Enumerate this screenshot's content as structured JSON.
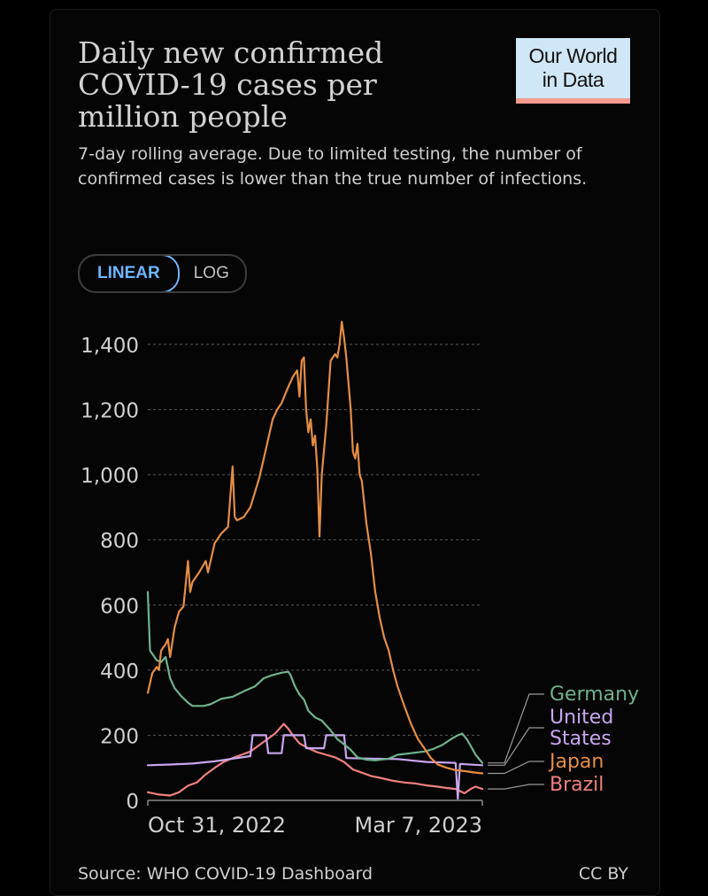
{
  "logo": {
    "line1": "Our World",
    "line2": "in Data"
  },
  "title": "Daily new confirmed COVID-19 cases per million people",
  "subtitle": "7-day rolling average. Due to limited testing, the number of confirmed cases is lower than the true number of infections.",
  "scale_toggle": {
    "linear_label": "LINEAR",
    "log_label": "LOG",
    "selected": "LINEAR"
  },
  "footer": {
    "source": "Source: WHO COVID-19 Dashboard",
    "license": "CC BY"
  },
  "chart_data": {
    "type": "line",
    "title": "Daily new confirmed COVID-19 cases per million people",
    "xlabel": "",
    "ylabel": "",
    "ylim": [
      0,
      1400
    ],
    "yticks": [
      0,
      200,
      400,
      600,
      800,
      1000,
      1200,
      1400
    ],
    "ytick_labels": [
      "0",
      "200",
      "400",
      "600",
      "800",
      "1,000",
      "1,200",
      "1,400"
    ],
    "x_range_days": [
      0,
      150
    ],
    "xtick_labels": [
      {
        "day": 10,
        "label": "Oct 31, 2022"
      },
      {
        "day": 137,
        "label": "Mar 7, 2023"
      }
    ],
    "grid": "horizontal dashed",
    "legend_placement": "right, end of lines",
    "series": [
      {
        "name": "Germany",
        "label_lines": [
          "Germany"
        ],
        "color": "#6fb28d",
        "points": [
          [
            0,
            640
          ],
          [
            1,
            460
          ],
          [
            4,
            430
          ],
          [
            6,
            425
          ],
          [
            8,
            440
          ],
          [
            10,
            375
          ],
          [
            12,
            345
          ],
          [
            15,
            320
          ],
          [
            18,
            300
          ],
          [
            20,
            290
          ],
          [
            25,
            290
          ],
          [
            28,
            295
          ],
          [
            33,
            312
          ],
          [
            38,
            318
          ],
          [
            43,
            335
          ],
          [
            48,
            350
          ],
          [
            52,
            375
          ],
          [
            56,
            385
          ],
          [
            60,
            392
          ],
          [
            63,
            395
          ],
          [
            64,
            385
          ],
          [
            66,
            350
          ],
          [
            68,
            325
          ],
          [
            70,
            310
          ],
          [
            72,
            275
          ],
          [
            75,
            255
          ],
          [
            78,
            245
          ],
          [
            82,
            215
          ],
          [
            85,
            188
          ],
          [
            88,
            172
          ],
          [
            91,
            155
          ],
          [
            94,
            132
          ],
          [
            98,
            125
          ],
          [
            102,
            123
          ],
          [
            108,
            128
          ],
          [
            112,
            140
          ],
          [
            118,
            145
          ],
          [
            124,
            150
          ],
          [
            128,
            158
          ],
          [
            132,
            170
          ],
          [
            136,
            188
          ],
          [
            139,
            200
          ],
          [
            141,
            205
          ],
          [
            143,
            188
          ],
          [
            145,
            165
          ],
          [
            147,
            140
          ],
          [
            150,
            115
          ]
        ]
      },
      {
        "name": "United States",
        "label_lines": [
          "United",
          "States"
        ],
        "color": "#c8a6ee",
        "points": [
          [
            0,
            108
          ],
          [
            10,
            110
          ],
          [
            20,
            113
          ],
          [
            30,
            120
          ],
          [
            38,
            128
          ],
          [
            46,
            136
          ],
          [
            47,
            200
          ],
          [
            53,
            200
          ],
          [
            54,
            145
          ],
          [
            60,
            145
          ],
          [
            61,
            200
          ],
          [
            70,
            200
          ],
          [
            71,
            160
          ],
          [
            79,
            160
          ],
          [
            80,
            200
          ],
          [
            88,
            200
          ],
          [
            89,
            130
          ],
          [
            100,
            128
          ],
          [
            112,
            127
          ],
          [
            125,
            118
          ],
          [
            138,
            115
          ],
          [
            139,
            5
          ],
          [
            140,
            112
          ],
          [
            150,
            108
          ]
        ]
      },
      {
        "name": "Japan",
        "label_lines": [
          "Japan"
        ],
        "color": "#e58d44",
        "points": [
          [
            0,
            330
          ],
          [
            2,
            390
          ],
          [
            4,
            410
          ],
          [
            5,
            400
          ],
          [
            6,
            460
          ],
          [
            8,
            480
          ],
          [
            9,
            495
          ],
          [
            10,
            440
          ],
          [
            12,
            530
          ],
          [
            14,
            580
          ],
          [
            16,
            595
          ],
          [
            18,
            735
          ],
          [
            19,
            640
          ],
          [
            20,
            670
          ],
          [
            23,
            700
          ],
          [
            26,
            735
          ],
          [
            27,
            700
          ],
          [
            30,
            790
          ],
          [
            33,
            820
          ],
          [
            36,
            840
          ],
          [
            38,
            1025
          ],
          [
            39,
            870
          ],
          [
            40,
            860
          ],
          [
            43,
            870
          ],
          [
            46,
            900
          ],
          [
            50,
            990
          ],
          [
            53,
            1080
          ],
          [
            56,
            1170
          ],
          [
            58,
            1200
          ],
          [
            60,
            1220
          ],
          [
            63,
            1270
          ],
          [
            65,
            1300
          ],
          [
            67,
            1320
          ],
          [
            68,
            1240
          ],
          [
            69,
            1350
          ],
          [
            70,
            1360
          ],
          [
            71,
            1200
          ],
          [
            72,
            1130
          ],
          [
            73,
            1170
          ],
          [
            74,
            1090
          ],
          [
            75,
            1120
          ],
          [
            76,
            1020
          ],
          [
            77,
            810
          ],
          [
            78,
            1000
          ],
          [
            80,
            1150
          ],
          [
            82,
            1350
          ],
          [
            84,
            1370
          ],
          [
            85,
            1360
          ],
          [
            86,
            1400
          ],
          [
            87,
            1470
          ],
          [
            88,
            1420
          ],
          [
            89,
            1360
          ],
          [
            90,
            1280
          ],
          [
            91,
            1200
          ],
          [
            92,
            1070
          ],
          [
            93,
            1050
          ],
          [
            94,
            1095
          ],
          [
            95,
            1000
          ],
          [
            96,
            980
          ],
          [
            98,
            850
          ],
          [
            100,
            760
          ],
          [
            102,
            640
          ],
          [
            104,
            560
          ],
          [
            106,
            500
          ],
          [
            108,
            460
          ],
          [
            110,
            400
          ],
          [
            112,
            350
          ],
          [
            115,
            290
          ],
          [
            118,
            235
          ],
          [
            121,
            190
          ],
          [
            124,
            160
          ],
          [
            127,
            130
          ],
          [
            130,
            110
          ],
          [
            134,
            100
          ],
          [
            138,
            93
          ],
          [
            142,
            90
          ],
          [
            146,
            86
          ],
          [
            150,
            83
          ]
        ]
      },
      {
        "name": "Brazil",
        "label_lines": [
          "Brazil"
        ],
        "color": "#f0807f",
        "points": [
          [
            0,
            25
          ],
          [
            5,
            18
          ],
          [
            10,
            15
          ],
          [
            14,
            25
          ],
          [
            18,
            45
          ],
          [
            22,
            55
          ],
          [
            26,
            80
          ],
          [
            30,
            100
          ],
          [
            34,
            118
          ],
          [
            38,
            130
          ],
          [
            42,
            140
          ],
          [
            46,
            150
          ],
          [
            50,
            170
          ],
          [
            54,
            190
          ],
          [
            57,
            205
          ],
          [
            59,
            220
          ],
          [
            61,
            235
          ],
          [
            63,
            220
          ],
          [
            65,
            200
          ],
          [
            68,
            175
          ],
          [
            72,
            160
          ],
          [
            76,
            148
          ],
          [
            80,
            140
          ],
          [
            84,
            132
          ],
          [
            88,
            118
          ],
          [
            92,
            95
          ],
          [
            96,
            85
          ],
          [
            100,
            75
          ],
          [
            105,
            68
          ],
          [
            110,
            60
          ],
          [
            115,
            55
          ],
          [
            120,
            52
          ],
          [
            125,
            46
          ],
          [
            130,
            42
          ],
          [
            134,
            38
          ],
          [
            138,
            35
          ],
          [
            142,
            22
          ],
          [
            145,
            36
          ],
          [
            147,
            42
          ],
          [
            150,
            35
          ]
        ]
      }
    ]
  }
}
